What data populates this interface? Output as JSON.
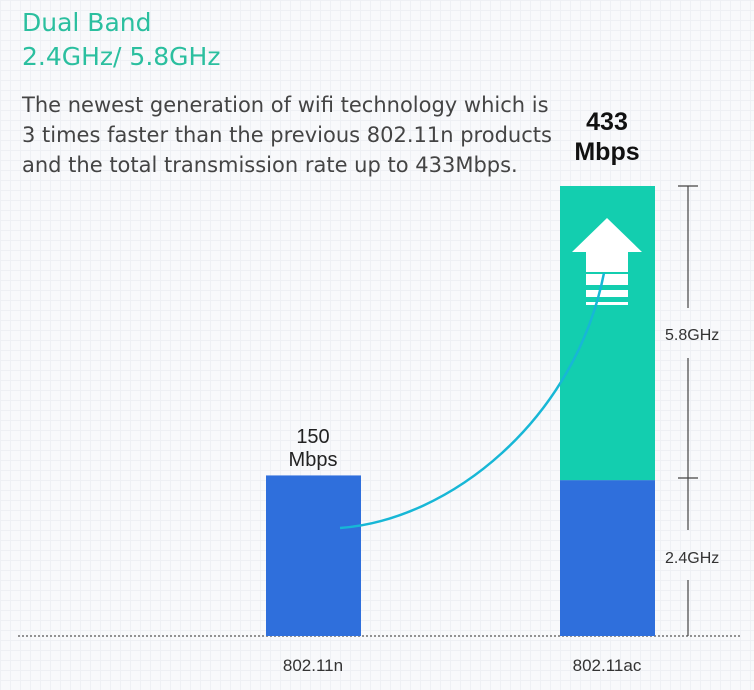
{
  "header": {
    "title_line1": "Dual Band",
    "title_line2": "2.4GHz/ 5.8GHz",
    "description": "The newest generation of wifi technology which is 3 times faster than the previous 802.11n products and the total transmission rate up to 433Mbps."
  },
  "chart_data": {
    "type": "bar",
    "categories": [
      "802.11n",
      "802.11ac"
    ],
    "series": [
      {
        "name": "2.4GHz",
        "values": [
          150,
          150
        ],
        "color": "#2f6fdc"
      },
      {
        "name": "5.8GHz",
        "values": [
          0,
          283
        ],
        "color": "#13ceaf"
      }
    ],
    "totals": [
      150,
      433
    ],
    "value_labels": [
      {
        "number": "150",
        "unit": "Mbps"
      },
      {
        "number": "433",
        "unit": "Mbps"
      }
    ],
    "band_labels": [
      "2.4GHz",
      "5.8GHz"
    ],
    "ylim": [
      0,
      433
    ]
  }
}
